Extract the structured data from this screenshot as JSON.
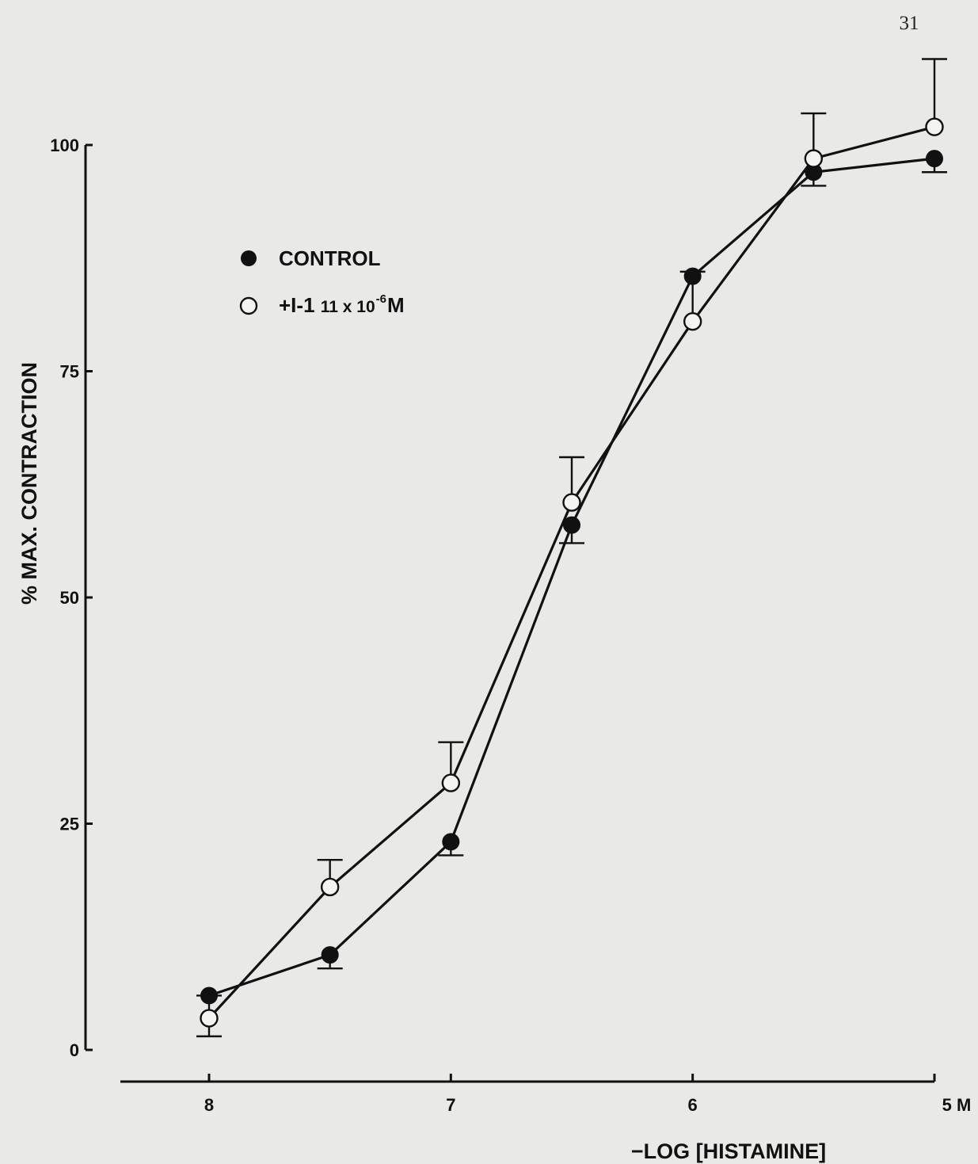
{
  "page_number": "31",
  "chart_data": {
    "type": "line",
    "xlabel": "−LOG [HISTAMINE]",
    "ylabel": "% MAX. CONTRACTION",
    "x_ticks": [
      "8",
      "7",
      "6",
      "5 M"
    ],
    "x_tick_values": [
      8,
      7,
      6,
      5
    ],
    "y_ticks": [
      "100",
      "75",
      "50",
      "25",
      "0"
    ],
    "y_tick_values": [
      100,
      75,
      50,
      25,
      0
    ],
    "xlim": [
      8,
      5
    ],
    "ylim": [
      0,
      100
    ],
    "grid": false,
    "legend_position": "top-left",
    "series": [
      {
        "name": "CONTROL",
        "marker": "filled-circle",
        "x": [
          8,
          7.5,
          7,
          6.5,
          6,
          5.5,
          5
        ],
        "y": [
          6,
          10.5,
          23,
          58,
          85.5,
          97,
          98.5
        ],
        "error_direction": "down",
        "error": [
          0,
          1.5,
          1.5,
          2,
          0,
          1.5,
          1.5
        ]
      },
      {
        "name": "+I-1  11 x 10",
        "name_exponent": "-6",
        "name_unit": "M",
        "marker": "open-circle",
        "x": [
          8,
          7.5,
          7,
          6.5,
          6,
          5.5,
          5
        ],
        "y": [
          3.5,
          18,
          29.5,
          60.5,
          80.5,
          98.5,
          102
        ],
        "error_direction": "up",
        "error": [
          2.5,
          3,
          4.5,
          5,
          5.5,
          5,
          7.5
        ],
        "error_lower": [
          2,
          0,
          0,
          0,
          0,
          0,
          0
        ]
      }
    ]
  }
}
